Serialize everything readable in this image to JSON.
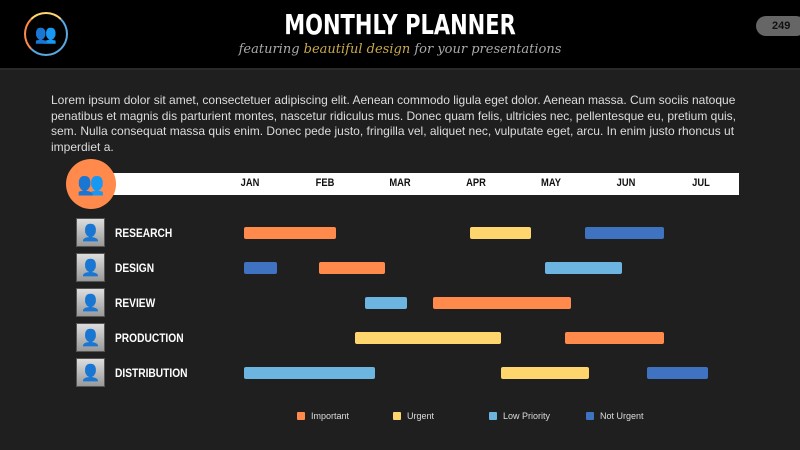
{
  "header": {
    "title": "MONTHLY PLANNER",
    "subtitle_pre": "featuring ",
    "subtitle_highlight": "beautiful design",
    "subtitle_post": " for your presentations",
    "page_number": "249",
    "logo_icon": "group-icon"
  },
  "paragraph": "Lorem ipsum dolor sit amet, consectetuer adipiscing elit. Aenean commodo ligula eget dolor. Aenean massa. Cum sociis natoque penatibus et magnis dis parturient montes, nascetur ridiculus mus. Donec quam felis, ultricies nec, pellentesque eu, pretium quis, sem. Nulla consequat massa quis enim. Donec pede justo, fringilla vel, aliquet nec, vulputate eget, arcu. In enim justo rhoncus ut imperdiet a.",
  "colors": {
    "Important": "#ff8a4c",
    "Urgent": "#ffd56e",
    "Low Priority": "#6bb5e0",
    "Not Urgent": "#3f72c0"
  },
  "chart_data": {
    "type": "gantt",
    "months": [
      "JAN",
      "FEB",
      "MAR",
      "APR",
      "MAY",
      "JUN",
      "JUL"
    ],
    "rows": [
      {
        "label": "RESEARCH",
        "tasks": [
          {
            "start": 0.92,
            "end": 2.14,
            "category": "Important"
          },
          {
            "start": 3.93,
            "end": 4.74,
            "category": "Urgent"
          },
          {
            "start": 5.45,
            "end": 6.51,
            "category": "Not Urgent"
          }
        ]
      },
      {
        "label": "DESIGN",
        "tasks": [
          {
            "start": 0.92,
            "end": 1.36,
            "category": "Not Urgent"
          },
          {
            "start": 1.92,
            "end": 2.8,
            "category": "Important"
          },
          {
            "start": 4.92,
            "end": 5.95,
            "category": "Low Priority"
          }
        ]
      },
      {
        "label": "REVIEW",
        "tasks": [
          {
            "start": 2.53,
            "end": 3.09,
            "category": "Low Priority"
          },
          {
            "start": 3.43,
            "end": 5.27,
            "category": "Important"
          }
        ]
      },
      {
        "label": "PRODUCTION",
        "tasks": [
          {
            "start": 2.4,
            "end": 4.34,
            "category": "Urgent"
          },
          {
            "start": 5.19,
            "end": 6.51,
            "category": "Important"
          }
        ]
      },
      {
        "label": "DISTRIBUTION",
        "tasks": [
          {
            "start": 0.92,
            "end": 2.66,
            "category": "Low Priority"
          },
          {
            "start": 4.34,
            "end": 5.51,
            "category": "Urgent"
          },
          {
            "start": 6.28,
            "end": 7.09,
            "category": "Not Urgent"
          }
        ]
      }
    ],
    "legend": [
      "Important",
      "Urgent",
      "Low Priority",
      "Not Urgent"
    ],
    "legend_position": "bottom"
  }
}
